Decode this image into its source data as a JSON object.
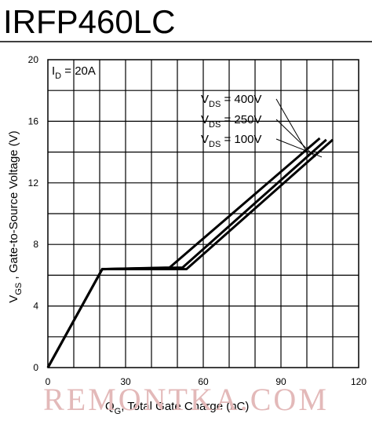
{
  "header": {
    "part_number": "IRFP460LC"
  },
  "watermark": {
    "text": "REMONTKA.COM",
    "color": "#e3b9b9"
  },
  "chart_data": {
    "type": "line",
    "xlabel": "Total Gate Charge (nC)",
    "xlabel_symbol": "Q",
    "xlabel_subscript": "G",
    "ylabel": "Gate-to-Source Voltage (V)",
    "ylabel_symbol": "V",
    "ylabel_subscript": "GS",
    "xlim": [
      0,
      120
    ],
    "ylim": [
      0,
      20
    ],
    "xticks": [
      "0",
      "30",
      "60",
      "90",
      "120"
    ],
    "yticks": [
      "0",
      "4",
      "8",
      "12",
      "16",
      "20"
    ],
    "grid": true,
    "condition": {
      "symbol": "I",
      "subscript": "D",
      "value": " = 20A"
    },
    "series": [
      {
        "name": "400V",
        "label_symbol": "V",
        "label_subscript": "DS",
        "label_value": " = 400V",
        "x": [
          0,
          21,
          47,
          105
        ],
        "y": [
          0,
          6.4,
          6.5,
          14.9
        ]
      },
      {
        "name": "250V",
        "label_symbol": "V",
        "label_subscript": "DS",
        "label_value": " = 250V",
        "x": [
          0,
          21,
          52,
          107.5
        ],
        "y": [
          0,
          6.4,
          6.5,
          14.8
        ]
      },
      {
        "name": "100V",
        "label_symbol": "V",
        "label_subscript": "DS",
        "label_value": " = 100V",
        "x": [
          0,
          21,
          53.5,
          110
        ],
        "y": [
          0,
          6.4,
          6.4,
          14.8
        ]
      }
    ]
  }
}
